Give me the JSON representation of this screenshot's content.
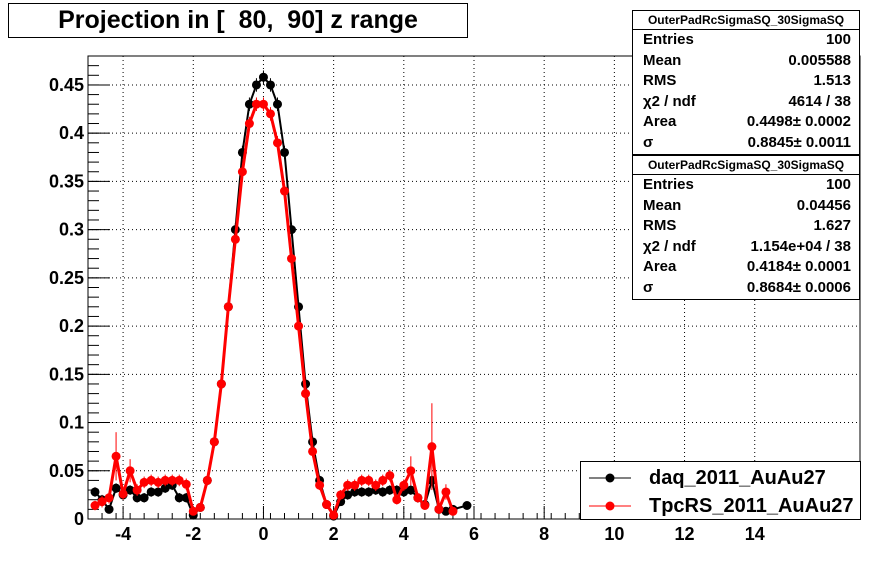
{
  "title": "Projection in [  80,  90] z range",
  "colors": {
    "series1": "#000000",
    "series2": "#ff0000",
    "grid": "#000000",
    "background": "#ffffff"
  },
  "stats": [
    {
      "header": "OuterPadRcSigmaSQ_30SigmaSQ",
      "rows": [
        {
          "label": "Entries",
          "value": "100"
        },
        {
          "label": "Mean",
          "value": "0.005588"
        },
        {
          "label": "RMS",
          "value": "1.513"
        },
        {
          "label": "χ2 / ndf",
          "value": "4614 / 38"
        },
        {
          "label": "Area",
          "value": "0.4498± 0.0002"
        },
        {
          "label": "σ",
          "value": "0.8845± 0.0011"
        }
      ]
    },
    {
      "header": "OuterPadRcSigmaSQ_30SigmaSQ",
      "rows": [
        {
          "label": "Entries",
          "value": "100"
        },
        {
          "label": "Mean",
          "value": "0.04456"
        },
        {
          "label": "RMS",
          "value": "1.627"
        },
        {
          "label": "χ2 / ndf",
          "value": "1.154e+04 / 38"
        },
        {
          "label": "Area",
          "value": "0.4184± 0.0001"
        },
        {
          "label": "σ",
          "value": "0.8684± 0.0006"
        }
      ]
    }
  ],
  "legend": [
    {
      "label": "daq_2011_AuAu27",
      "color": "#000000"
    },
    {
      "label": "TpcRS_2011_AuAu27",
      "color": "#ff0000"
    }
  ],
  "chart_data": {
    "type": "scatter",
    "title": "Projection in [  80,  90] z range",
    "xlim": [
      -5,
      17
    ],
    "ylim": [
      0,
      0.48
    ],
    "grid": true,
    "legend_position": "bottom-right",
    "x_ticks": [
      "-4",
      "-2",
      "0",
      "2",
      "4",
      "6",
      "8",
      "10",
      "12",
      "14"
    ],
    "x_tick_values": [
      -4,
      -2,
      0,
      2,
      4,
      6,
      8,
      10,
      12,
      14
    ],
    "y_ticks": [
      "0",
      "0.05",
      "0.1",
      "0.15",
      "0.2",
      "0.25",
      "0.3",
      "0.35",
      "0.4",
      "0.45"
    ],
    "y_tick_values": [
      0,
      0.05,
      0.1,
      0.15,
      0.2,
      0.25,
      0.3,
      0.35,
      0.4,
      0.45
    ],
    "series": [
      {
        "name": "daq_2011_AuAu27",
        "color": "#000000",
        "x": [
          -4.8,
          -4.6,
          -4.4,
          -4.2,
          -4.0,
          -3.8,
          -3.6,
          -3.4,
          -3.2,
          -3.0,
          -2.8,
          -2.6,
          -2.4,
          -2.2,
          -2.0,
          -1.8,
          -1.6,
          -1.4,
          -1.2,
          -1.0,
          -0.8,
          -0.6,
          -0.4,
          -0.2,
          0.0,
          0.2,
          0.4,
          0.6,
          0.8,
          1.0,
          1.2,
          1.4,
          1.6,
          1.8,
          2.0,
          2.2,
          2.4,
          2.6,
          2.8,
          3.0,
          3.2,
          3.4,
          3.6,
          3.8,
          4.0,
          4.2,
          4.4,
          4.6,
          4.8,
          5.0,
          5.2,
          5.4,
          5.8
        ],
        "y": [
          0.028,
          0.02,
          0.01,
          0.032,
          0.025,
          0.03,
          0.022,
          0.022,
          0.028,
          0.028,
          0.032,
          0.035,
          0.022,
          0.022,
          0.004,
          0.012,
          0.04,
          0.08,
          0.14,
          0.22,
          0.3,
          0.38,
          0.43,
          0.45,
          0.458,
          0.45,
          0.43,
          0.38,
          0.3,
          0.22,
          0.14,
          0.08,
          0.04,
          0.015,
          0.003,
          0.018,
          0.025,
          0.028,
          0.028,
          0.028,
          0.03,
          0.028,
          0.03,
          0.03,
          0.028,
          0.03,
          0.022,
          0.015,
          0.04,
          0.01,
          0.008,
          0.01,
          0.014
        ],
        "err": [
          0.005,
          0.005,
          0.004,
          0.005,
          0.005,
          0.005,
          0.005,
          0.005,
          0.005,
          0.005,
          0.005,
          0.005,
          0.005,
          0.005,
          0.003,
          0.004,
          0.005,
          0.006,
          0.007,
          0.007,
          0.007,
          0.007,
          0.007,
          0.007,
          0.007,
          0.007,
          0.007,
          0.007,
          0.007,
          0.007,
          0.007,
          0.006,
          0.005,
          0.004,
          0.002,
          0.004,
          0.005,
          0.005,
          0.005,
          0.005,
          0.005,
          0.005,
          0.005,
          0.005,
          0.005,
          0.005,
          0.005,
          0.004,
          0.006,
          0.004,
          0.003,
          0.004,
          0.004
        ]
      },
      {
        "name": "TpcRS_2011_AuAu27",
        "color": "#ff0000",
        "x": [
          -4.8,
          -4.6,
          -4.4,
          -4.2,
          -4.0,
          -3.8,
          -3.6,
          -3.4,
          -3.2,
          -3.0,
          -2.8,
          -2.6,
          -2.4,
          -2.2,
          -2.0,
          -1.8,
          -1.6,
          -1.4,
          -1.2,
          -1.0,
          -0.8,
          -0.6,
          -0.4,
          -0.2,
          0.0,
          0.2,
          0.4,
          0.6,
          0.8,
          1.0,
          1.2,
          1.4,
          1.6,
          1.8,
          2.0,
          2.2,
          2.4,
          2.6,
          2.8,
          3.0,
          3.2,
          3.4,
          3.6,
          3.8,
          4.0,
          4.2,
          4.4,
          4.6,
          4.8,
          5.0,
          5.2,
          5.4
        ],
        "y": [
          0.014,
          0.018,
          0.022,
          0.065,
          0.026,
          0.05,
          0.03,
          0.038,
          0.04,
          0.038,
          0.04,
          0.04,
          0.04,
          0.036,
          0.008,
          0.012,
          0.04,
          0.08,
          0.14,
          0.22,
          0.29,
          0.36,
          0.41,
          0.43,
          0.43,
          0.42,
          0.39,
          0.34,
          0.27,
          0.2,
          0.13,
          0.07,
          0.035,
          0.015,
          0.004,
          0.025,
          0.035,
          0.035,
          0.04,
          0.04,
          0.035,
          0.04,
          0.045,
          0.02,
          0.035,
          0.05,
          0.022,
          0.014,
          0.075,
          0.01,
          0.028,
          0.008
        ],
        "err": [
          0.005,
          0.006,
          0.006,
          0.025,
          0.006,
          0.012,
          0.006,
          0.006,
          0.006,
          0.006,
          0.006,
          0.006,
          0.006,
          0.006,
          0.003,
          0.004,
          0.005,
          0.006,
          0.007,
          0.007,
          0.007,
          0.007,
          0.007,
          0.007,
          0.007,
          0.007,
          0.007,
          0.007,
          0.007,
          0.007,
          0.007,
          0.006,
          0.005,
          0.004,
          0.002,
          0.005,
          0.006,
          0.006,
          0.006,
          0.006,
          0.006,
          0.006,
          0.006,
          0.005,
          0.006,
          0.015,
          0.005,
          0.004,
          0.045,
          0.004,
          0.008,
          0.004
        ]
      }
    ]
  }
}
